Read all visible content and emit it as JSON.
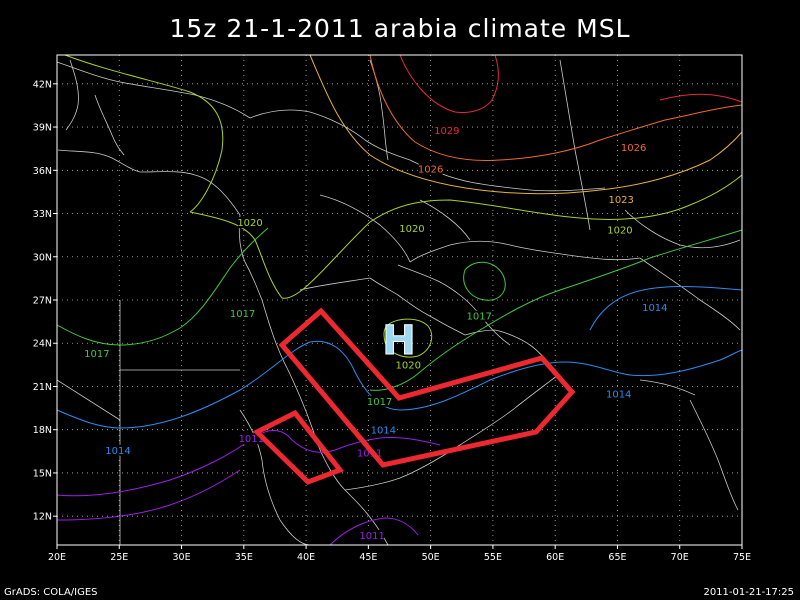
{
  "title": "15z 21-1-2011 arabia climate MSL",
  "footer_left": "GrADS: COLA/IGES",
  "footer_right": "2011-01-21-17:25",
  "high_marker": "H",
  "axes": {
    "lon_min": 20,
    "lon_max": 75,
    "lat_min": 10,
    "lat_max": 44,
    "x_ticks": [
      {
        "lon": 20,
        "label": "20E"
      },
      {
        "lon": 25,
        "label": "25E"
      },
      {
        "lon": 30,
        "label": "30E"
      },
      {
        "lon": 35,
        "label": "35E"
      },
      {
        "lon": 40,
        "label": "40E"
      },
      {
        "lon": 45,
        "label": "45E"
      },
      {
        "lon": 50,
        "label": "50E"
      },
      {
        "lon": 55,
        "label": "55E"
      },
      {
        "lon": 60,
        "label": "60E"
      },
      {
        "lon": 65,
        "label": "65E"
      },
      {
        "lon": 70,
        "label": "70E"
      },
      {
        "lon": 75,
        "label": "75E"
      }
    ],
    "y_ticks": [
      {
        "lat": 12,
        "label": "12N"
      },
      {
        "lat": 15,
        "label": "15N"
      },
      {
        "lat": 18,
        "label": "18N"
      },
      {
        "lat": 21,
        "label": "21N"
      },
      {
        "lat": 24,
        "label": "24N"
      },
      {
        "lat": 27,
        "label": "27N"
      },
      {
        "lat": 30,
        "label": "30N"
      },
      {
        "lat": 33,
        "label": "33N"
      },
      {
        "lat": 36,
        "label": "36N"
      },
      {
        "lat": 39,
        "label": "39N"
      },
      {
        "lat": 42,
        "label": "42N"
      }
    ]
  },
  "colors": {
    "1029": "#e8283c",
    "1026": "#f06a2a",
    "1023": "#e6b23a",
    "1020": "#a6d228",
    "1017": "#3ec83e",
    "1014": "#2a8cf0",
    "1011": "#9a1ee6",
    "box": "#ee2830",
    "high": "#9cd8f4",
    "coast": "#c8c8c8",
    "grid": "#b4b4b4"
  },
  "isobar_labels": [
    {
      "text": "1029",
      "lon": 51.3,
      "lat": 38.6,
      "level": "1029"
    },
    {
      "text": "1026",
      "lon": 50.0,
      "lat": 35.9,
      "level": "1026"
    },
    {
      "text": "1026",
      "lon": 66.3,
      "lat": 37.4,
      "level": "1026"
    },
    {
      "text": "1023",
      "lon": 65.3,
      "lat": 33.8,
      "level": "1023"
    },
    {
      "text": "1020",
      "lon": 35.5,
      "lat": 32.2,
      "level": "1020"
    },
    {
      "text": "1020",
      "lon": 48.5,
      "lat": 31.8,
      "level": "1020"
    },
    {
      "text": "1020",
      "lon": 65.2,
      "lat": 31.7,
      "level": "1020"
    },
    {
      "text": "1020",
      "lon": 48.2,
      "lat": 22.3,
      "level": "1020"
    },
    {
      "text": "1017",
      "lon": 34.9,
      "lat": 25.9,
      "level": "1017"
    },
    {
      "text": "1017",
      "lon": 23.2,
      "lat": 23.1,
      "level": "1017"
    },
    {
      "text": "1017",
      "lon": 53.9,
      "lat": 25.7,
      "level": "1017"
    },
    {
      "text": "1017",
      "lon": 45.9,
      "lat": 19.8,
      "level": "1017"
    },
    {
      "text": "1014",
      "lon": 68.0,
      "lat": 26.3,
      "level": "1014"
    },
    {
      "text": "1014",
      "lon": 65.1,
      "lat": 20.3,
      "level": "1014"
    },
    {
      "text": "1014",
      "lon": 46.2,
      "lat": 17.8,
      "level": "1014"
    },
    {
      "text": "1014",
      "lon": 24.9,
      "lat": 16.4,
      "level": "1014"
    },
    {
      "text": "1011",
      "lon": 35.6,
      "lat": 17.2,
      "level": "1011"
    },
    {
      "text": "1011",
      "lon": 45.1,
      "lat": 16.2,
      "level": "1011"
    },
    {
      "text": "1011",
      "lon": 45.3,
      "lat": 10.5,
      "level": "1011"
    }
  ]
}
